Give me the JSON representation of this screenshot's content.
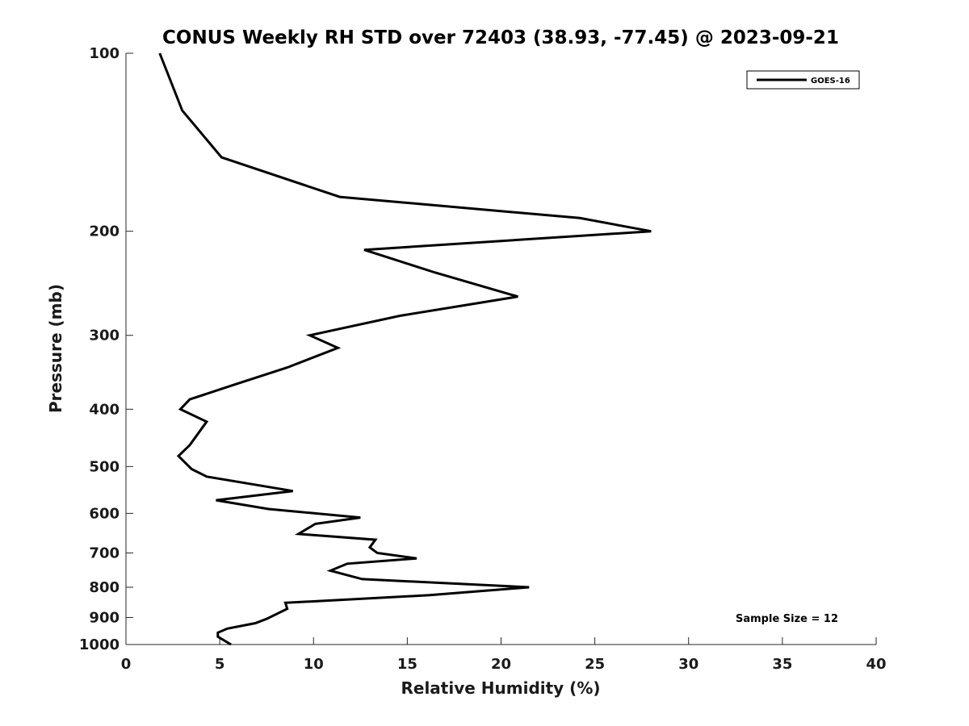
{
  "chart_data": {
    "type": "line",
    "title": "CONUS Weekly RH STD over 72403 (38.93, -77.45) @ 2023-09-21",
    "xlabel": "Relative Humidity (%)",
    "ylabel": "Pressure (mb)",
    "xlim": [
      0,
      40
    ],
    "ylim": [
      100,
      1000
    ],
    "yscale": "log",
    "yaxis_direction": "reversed",
    "xticks": [
      0,
      5,
      10,
      15,
      20,
      25,
      30,
      35,
      40
    ],
    "yticks": [
      100,
      200,
      300,
      400,
      500,
      600,
      700,
      800,
      900,
      1000
    ],
    "grid": false,
    "legend_position": "top-right",
    "annotation": "Sample Size = 12",
    "series": [
      {
        "name": "GOES-16",
        "color": "#000000",
        "points": [
          [
            1.8,
            100
          ],
          [
            3.0,
            125
          ],
          [
            5.1,
            150
          ],
          [
            11.4,
            175
          ],
          [
            24.2,
            190
          ],
          [
            28.0,
            200
          ],
          [
            12.7,
            215
          ],
          [
            16.5,
            235
          ],
          [
            20.9,
            258
          ],
          [
            14.6,
            278
          ],
          [
            9.8,
            300
          ],
          [
            11.3,
            315
          ],
          [
            8.6,
            340
          ],
          [
            5.6,
            365
          ],
          [
            3.4,
            385
          ],
          [
            2.9,
            400
          ],
          [
            4.3,
            420
          ],
          [
            3.4,
            460
          ],
          [
            2.8,
            480
          ],
          [
            3.5,
            505
          ],
          [
            4.3,
            520
          ],
          [
            8.9,
            550
          ],
          [
            4.8,
            570
          ],
          [
            7.6,
            590
          ],
          [
            12.5,
            610
          ],
          [
            10.1,
            625
          ],
          [
            9.2,
            650
          ],
          [
            13.3,
            665
          ],
          [
            13.0,
            685
          ],
          [
            13.4,
            700
          ],
          [
            15.5,
            715
          ],
          [
            11.8,
            730
          ],
          [
            10.9,
            750
          ],
          [
            12.6,
            775
          ],
          [
            21.5,
            800
          ],
          [
            16.2,
            825
          ],
          [
            8.5,
            850
          ],
          [
            8.6,
            870
          ],
          [
            7.5,
            905
          ],
          [
            6.9,
            920
          ],
          [
            5.4,
            940
          ],
          [
            4.9,
            955
          ],
          [
            4.9,
            970
          ],
          [
            5.6,
            1000
          ]
        ]
      }
    ]
  }
}
